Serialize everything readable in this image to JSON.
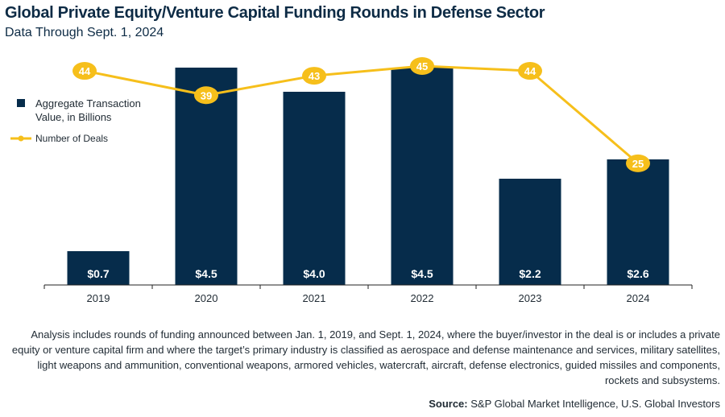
{
  "header": {
    "title": "Global Private Equity/Venture Capital Funding Rounds in Defense Sector",
    "subtitle": "Data Through Sept. 1, 2024"
  },
  "colors": {
    "bar": "#062c4b",
    "line": "#f6bf1b",
    "axis": "#222222",
    "bar_label": "#ffffff"
  },
  "chart_data": {
    "type": "bar",
    "categories": [
      "2019",
      "2020",
      "2021",
      "2022",
      "2023",
      "2024"
    ],
    "series": [
      {
        "name": "Aggregate Transaction Value, in Billions",
        "kind": "bar",
        "values": [
          0.7,
          4.5,
          4.0,
          4.5,
          2.2,
          2.6
        ],
        "labels": [
          "$0.7",
          "$4.5",
          "$4.0",
          "$4.5",
          "$2.2",
          "$2.6"
        ]
      },
      {
        "name": "Number of Deals",
        "kind": "line",
        "values": [
          44,
          39,
          43,
          45,
          44,
          25
        ],
        "labels": [
          "44",
          "39",
          "43",
          "45",
          "44",
          "25"
        ]
      }
    ],
    "ylim_bars": [
      0,
      4.5
    ],
    "ylim_deals": [
      0,
      45
    ],
    "legend": {
      "position": "top-left",
      "bar_label_line1": "Aggregate Transaction",
      "bar_label_line2": "Value, in Billions",
      "line_label": "Number of Deals"
    }
  },
  "footer": {
    "note": "Analysis includes rounds of funding announced between Jan. 1, 2019, and Sept. 1, 2024, where the buyer/investor in the deal is or includes a private equity or venture capital firm and where the target’s primary industry is classified as aerospace and defense maintenance and services, military satellites, light weapons and ammunition, conventional weapons, armored vehicles, watercraft, aircraft, defense electronics, guided missiles and components, rockets and subsystems.",
    "source_label": "Source:",
    "source_text": "S&P Global Market Intelligence, U.S. Global Investors"
  }
}
